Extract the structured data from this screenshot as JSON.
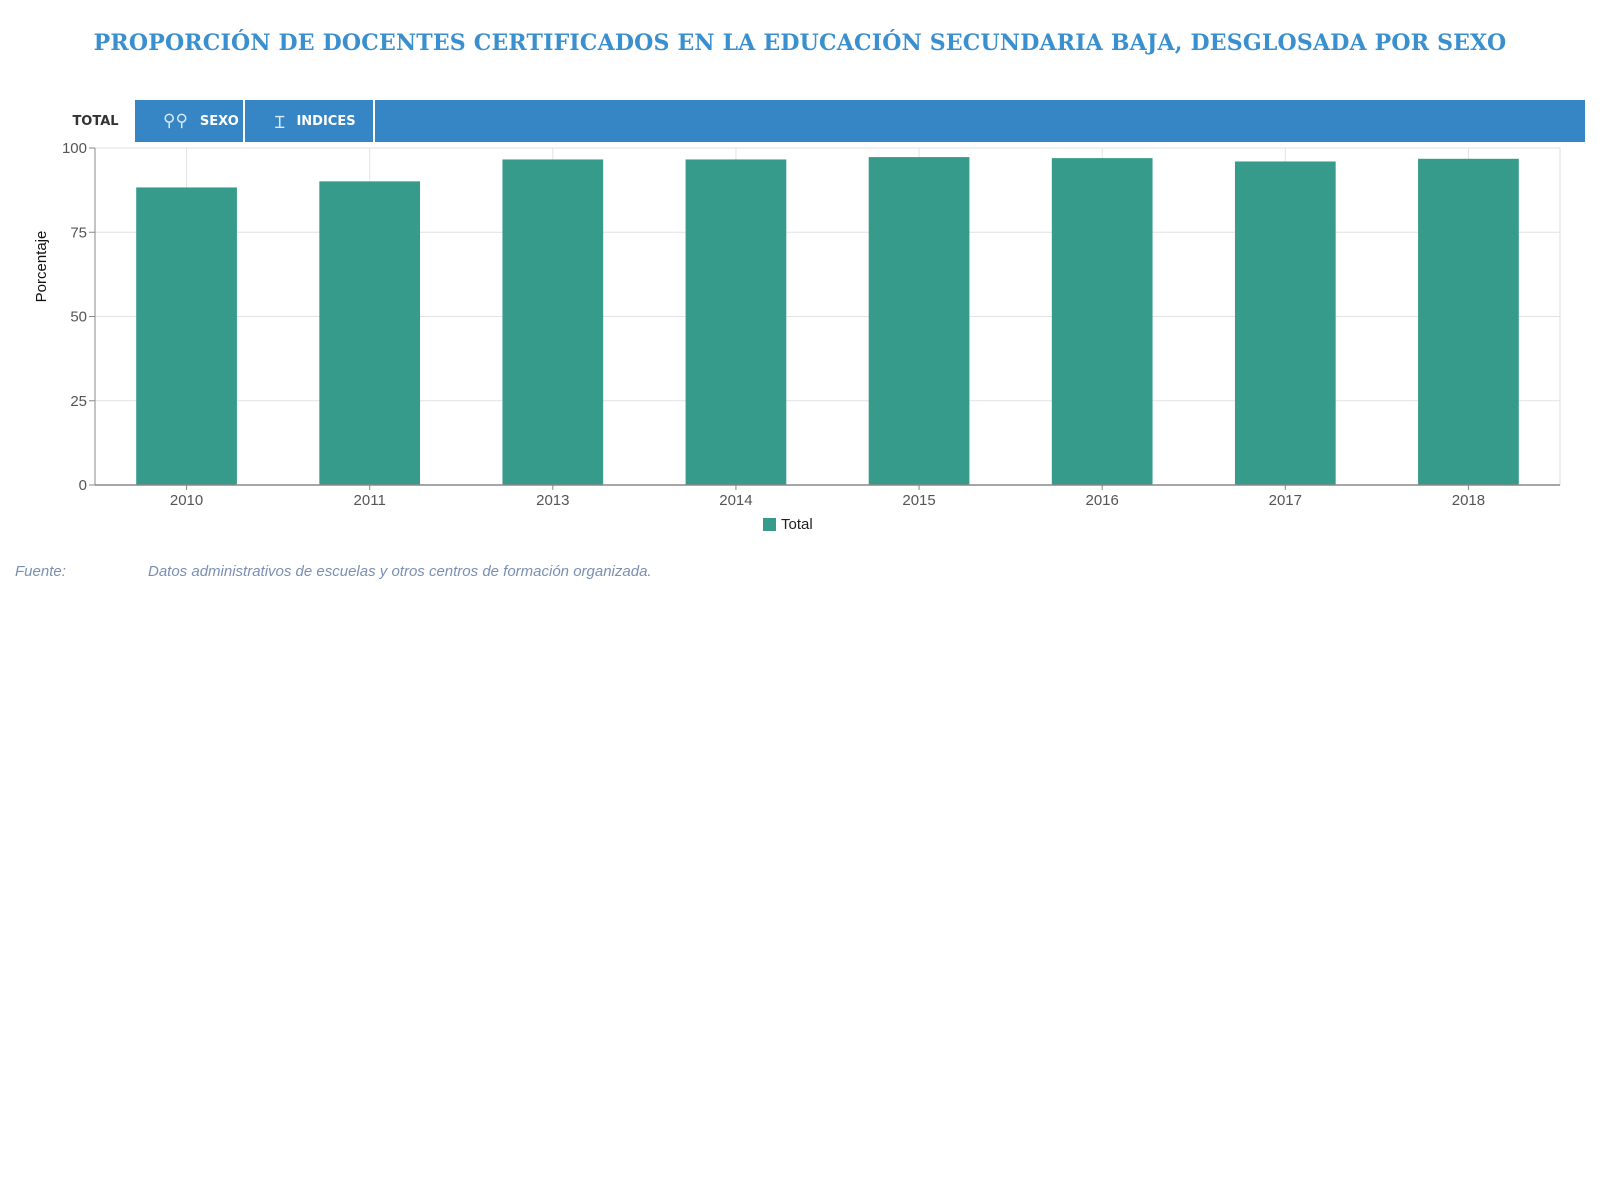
{
  "page": {
    "title": "PROPORCIÓN DE DOCENTES CERTIFICADOS EN LA EDUCACIÓN SECUNDARIA BAJA, DESGLOSADA POR SEXO"
  },
  "tabs": [
    {
      "label": "TOTAL",
      "icon": "",
      "selected": true
    },
    {
      "label": "SEXO",
      "icon": "gender-icon",
      "selected": false
    },
    {
      "label": "INDICES",
      "icon": "index-icon",
      "selected": false
    }
  ],
  "source": {
    "label": "Fuente:",
    "text": "Datos administrativos de escuelas y otros centros de formación organizada."
  },
  "colors": {
    "accent": "#3685c5",
    "title": "#3a8fce",
    "bar": "#369b8a"
  },
  "chart_data": {
    "type": "bar",
    "categories": [
      "2010",
      "2011",
      "2013",
      "2014",
      "2015",
      "2016",
      "2017",
      "2018"
    ],
    "series": [
      {
        "name": "Total",
        "values": [
          88.3,
          90.1,
          96.6,
          96.6,
          97.3,
          97.0,
          96.0,
          96.8
        ]
      }
    ],
    "title": "",
    "xlabel": "",
    "ylabel": "Porcentaje",
    "ylim": [
      0,
      100
    ],
    "yticks": [
      0,
      25,
      50,
      75,
      100
    ],
    "grid": true,
    "legend": "bottom-center"
  }
}
